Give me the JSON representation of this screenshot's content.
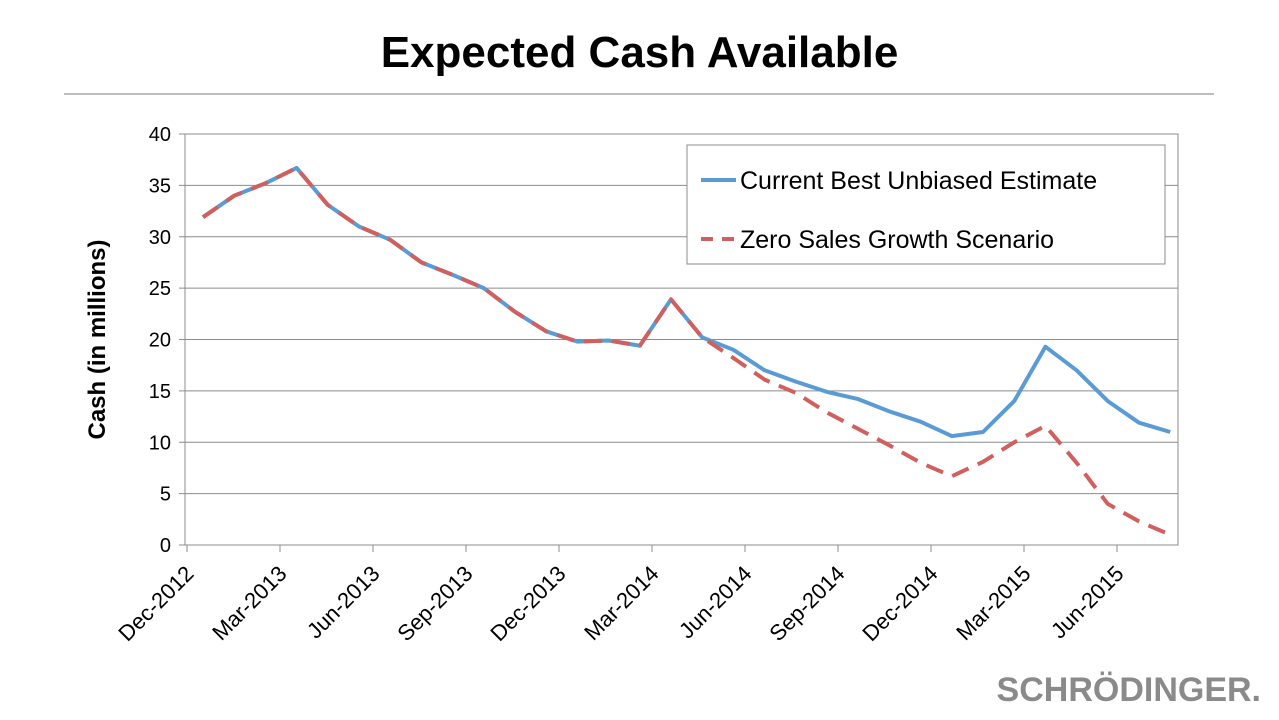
{
  "chart_data": {
    "type": "line",
    "title": "Expected Cash Available",
    "xlabel": "",
    "ylabel": "Cash (in millions)",
    "ylim": [
      0,
      40
    ],
    "yticks": [
      0,
      5,
      10,
      15,
      20,
      25,
      30,
      35,
      40
    ],
    "x_tick_labels": [
      "Dec-2012",
      "Mar-2013",
      "Jun-2013",
      "Sep-2013",
      "Dec-2013",
      "Mar-2014",
      "Jun-2014",
      "Sep-2014",
      "Dec-2014",
      "Mar-2015",
      "Jun-2015"
    ],
    "grid": true,
    "legend_position": "top-right",
    "series": [
      {
        "name": "Current Best Unbiased Estimate",
        "color": "#5b9bd5",
        "style": "solid",
        "values": [
          31.9,
          34.0,
          35.2,
          36.7,
          33.1,
          31.0,
          29.7,
          27.5,
          26.3,
          25.0,
          22.7,
          20.8,
          19.8,
          19.9,
          19.4,
          23.9,
          20.2,
          19.0,
          17.0,
          15.9,
          14.9,
          14.2,
          13.0,
          12.0,
          10.6,
          11.0,
          14.0,
          19.3,
          17.0,
          14.0,
          11.9,
          11.0
        ]
      },
      {
        "name": "Zero Sales Growth Scenario",
        "color": "#d0605e",
        "style": "dashed",
        "values": [
          31.9,
          34.0,
          35.2,
          36.7,
          33.1,
          31.0,
          29.7,
          27.5,
          26.3,
          25.0,
          22.7,
          20.8,
          19.8,
          19.9,
          19.4,
          23.9,
          20.2,
          18.2,
          16.1,
          14.8,
          12.9,
          11.3,
          9.7,
          8.0,
          6.7,
          8.1,
          10.0,
          11.6,
          8.0,
          4.0,
          2.3,
          1.0
        ]
      }
    ]
  },
  "brand": {
    "logo_text": "SCHRÖDINGER."
  }
}
